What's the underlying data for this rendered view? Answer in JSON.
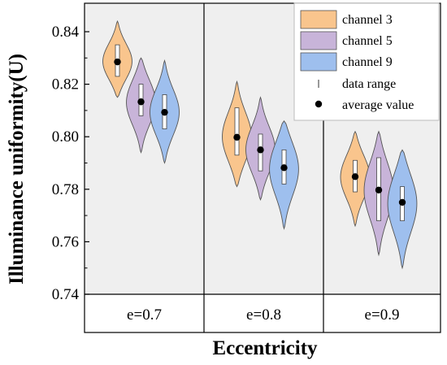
{
  "chart_data": {
    "type": "violin",
    "title": "",
    "xlabel": "Eccentricity",
    "ylabel": "Illuminance uniformity(U)",
    "ylim": [
      0.74,
      0.845
    ],
    "yticks": [
      "0.74",
      "0.76",
      "0.78",
      "0.80",
      "0.82",
      "0.84"
    ],
    "ytick_values": [
      0.74,
      0.76,
      0.78,
      0.8,
      0.82,
      0.84
    ],
    "categories": [
      "e=0.7",
      "e=0.8",
      "e=0.9"
    ],
    "grid": false,
    "legend_position": "top-right",
    "series": [
      {
        "name": "channel 3",
        "color": "#f9c58d",
        "values": [
          {
            "mean": 0.8285,
            "range": [
              0.823,
              0.835
            ],
            "min": 0.815,
            "max": 0.844
          },
          {
            "mean": 0.7998,
            "range": [
              0.793,
              0.811
            ],
            "min": 0.781,
            "max": 0.821
          },
          {
            "mean": 0.7848,
            "range": [
              0.779,
              0.791
            ],
            "min": 0.766,
            "max": 0.802
          }
        ]
      },
      {
        "name": "channel 5",
        "color": "#c8b4d9",
        "values": [
          {
            "mean": 0.8133,
            "range": [
              0.808,
              0.82
            ],
            "min": 0.794,
            "max": 0.83
          },
          {
            "mean": 0.795,
            "range": [
              0.787,
              0.801
            ],
            "min": 0.776,
            "max": 0.815
          },
          {
            "mean": 0.7797,
            "range": [
              0.768,
              0.792
            ],
            "min": 0.755,
            "max": 0.802
          }
        ]
      },
      {
        "name": "channel 9",
        "color": "#9ebfee",
        "values": [
          {
            "mean": 0.8093,
            "range": [
              0.803,
              0.816
            ],
            "min": 0.79,
            "max": 0.829
          },
          {
            "mean": 0.7882,
            "range": [
              0.782,
              0.795
            ],
            "min": 0.765,
            "max": 0.806
          },
          {
            "mean": 0.775,
            "range": [
              0.768,
              0.781
            ],
            "min": 0.75,
            "max": 0.795
          }
        ]
      }
    ],
    "legend_extra": [
      "data range",
      "average value"
    ]
  }
}
